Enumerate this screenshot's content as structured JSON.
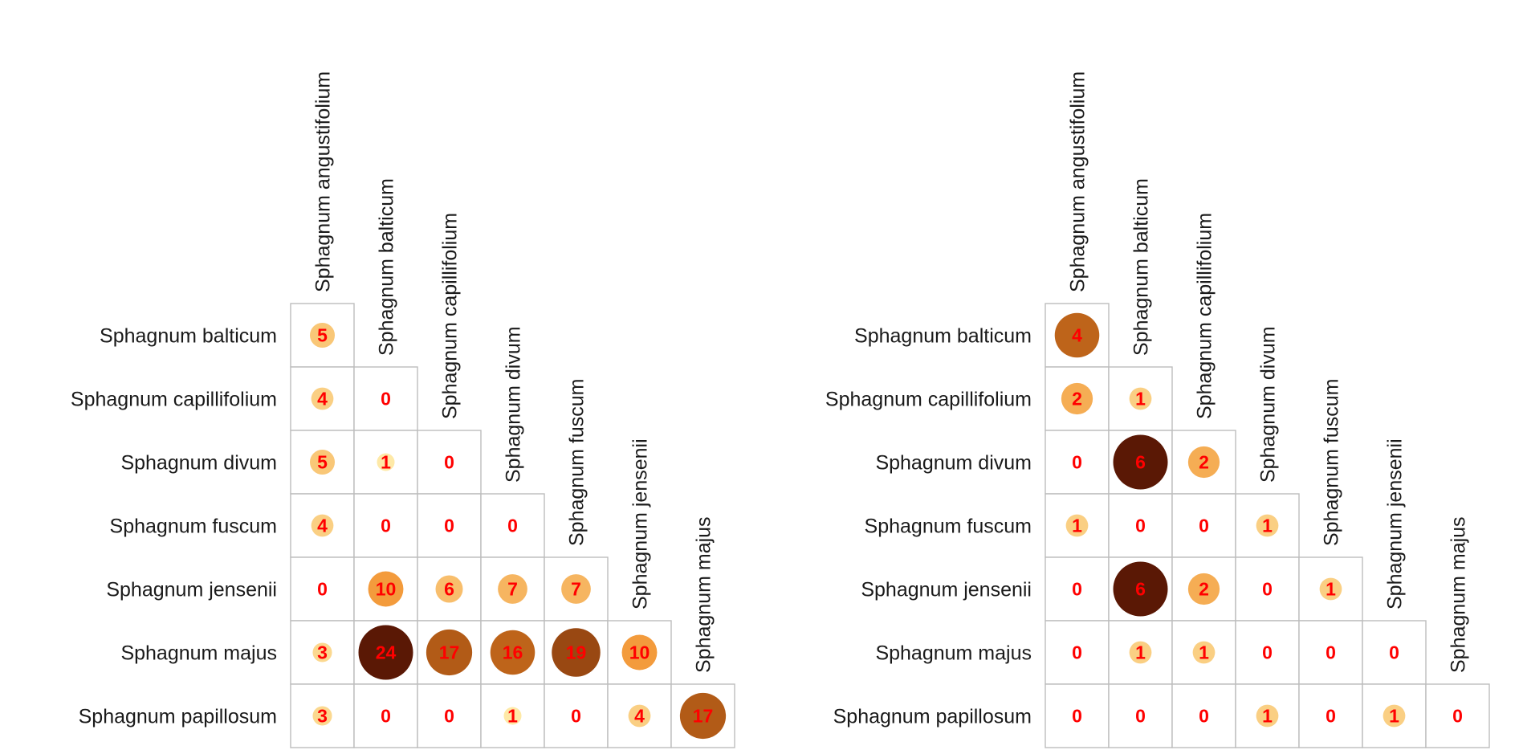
{
  "chart_data": [
    {
      "type": "heatmap",
      "subtype": "lower-triangular co-occurrence matrix with sized circles",
      "column_labels": [
        "Sphagnum angustifolium",
        "Sphagnum balticum",
        "Sphagnum capillifolium",
        "Sphagnum divum",
        "Sphagnum fuscum",
        "Sphagnum jensenii",
        "Sphagnum majus"
      ],
      "row_labels": [
        "Sphagnum balticum",
        "Sphagnum capillifolium",
        "Sphagnum divum",
        "Sphagnum fuscum",
        "Sphagnum jensenii",
        "Sphagnum majus",
        "Sphagnum papillosum"
      ],
      "values": [
        [
          5
        ],
        [
          4,
          0
        ],
        [
          5,
          1,
          0
        ],
        [
          4,
          0,
          0,
          0
        ],
        [
          0,
          10,
          6,
          7,
          7
        ],
        [
          3,
          24,
          17,
          16,
          19,
          10
        ],
        [
          3,
          0,
          0,
          1,
          0,
          4,
          17
        ]
      ],
      "value_range": [
        0,
        24
      ]
    },
    {
      "type": "heatmap",
      "subtype": "lower-triangular co-occurrence matrix with sized circles",
      "column_labels": [
        "Sphagnum angustifolium",
        "Sphagnum balticum",
        "Sphagnum capillifolium",
        "Sphagnum divum",
        "Sphagnum fuscum",
        "Sphagnum jensenii",
        "Sphagnum majus"
      ],
      "row_labels": [
        "Sphagnum balticum",
        "Sphagnum capillifolium",
        "Sphagnum divum",
        "Sphagnum fuscum",
        "Sphagnum jensenii",
        "Sphagnum majus",
        "Sphagnum papillosum"
      ],
      "values": [
        [
          4
        ],
        [
          2,
          1
        ],
        [
          0,
          6,
          2
        ],
        [
          1,
          0,
          0,
          1
        ],
        [
          0,
          6,
          2,
          0,
          1
        ],
        [
          0,
          1,
          1,
          0,
          0,
          0
        ],
        [
          0,
          0,
          0,
          1,
          0,
          1,
          0
        ]
      ],
      "value_range": [
        0,
        6
      ]
    }
  ],
  "colors": {
    "scale_low": "#fff2b3",
    "scale_mid": "#f08a24",
    "scale_high": "#5a1805",
    "value_text": "#ff0000",
    "grid": "#bdbdbd"
  }
}
